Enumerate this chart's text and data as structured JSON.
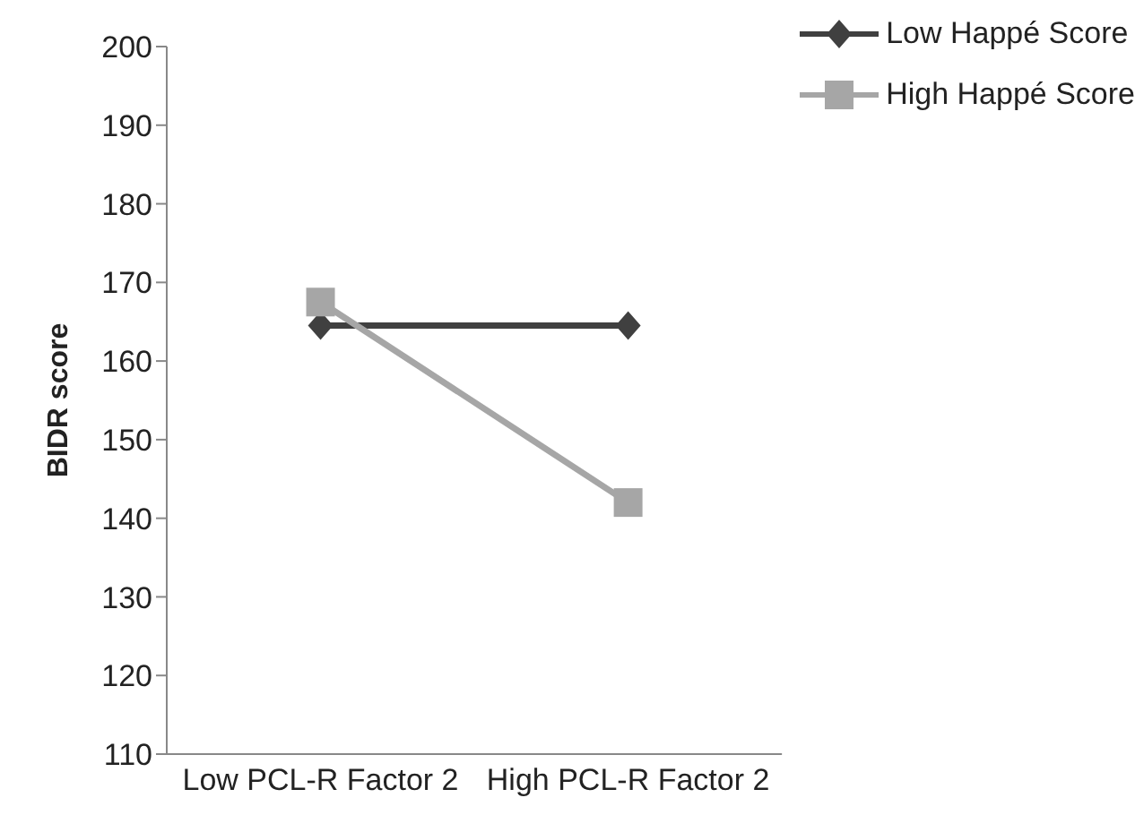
{
  "chart_data": {
    "type": "line",
    "ylabel": "BIDR score",
    "categories": [
      "Low PCL-R Factor 2",
      "High PCL-R Factor 2"
    ],
    "series": [
      {
        "name": "Low Happé Score",
        "color": "#404040",
        "values": [
          164.5,
          164.5
        ],
        "marker": "diamond"
      },
      {
        "name": "High Happé Score",
        "color": "#a6a6a6",
        "values": [
          167.5,
          142
        ],
        "marker": "square"
      }
    ],
    "ylim": [
      110,
      200
    ],
    "yticks": [
      110,
      120,
      130,
      140,
      150,
      160,
      170,
      180,
      190,
      200
    ],
    "grid": false,
    "legend": "top right",
    "line_style": "solid"
  }
}
